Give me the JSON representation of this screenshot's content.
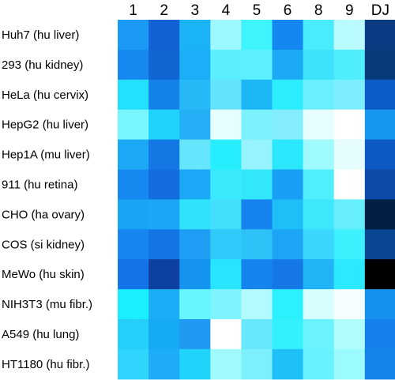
{
  "chart_data": {
    "type": "heatmap",
    "columns": [
      "1",
      "2",
      "3",
      "4",
      "5",
      "6",
      "8",
      "9",
      "DJ"
    ],
    "rows": [
      "Huh7 (hu liver)",
      "293 (hu kidney)",
      "HeLa (hu cervix)",
      "HepG2 (hu liver)",
      "Hep1A (mu liver)",
      "911 (hu retina)",
      "CHO (ha ovary)",
      "COS (si kidney)",
      "MeWo (hu skin)",
      "NIH3T3 (mu fibr.)",
      "A549 (hu lung)",
      "HT1180 (hu fibr.)"
    ],
    "cell_colors": [
      [
        "#1a9af5",
        "#1262d6",
        "#19b3f6",
        "#9cf7fe",
        "#3ef5fe",
        "#1487f0",
        "#48ecfd",
        "#bafcfd",
        "#0b3b83"
      ],
      [
        "#1788f0",
        "#1266d4",
        "#1caef7",
        "#5beffd",
        "#5cf1fd",
        "#1ba9f5",
        "#3ee2fd",
        "#50eefd",
        "#083a7a"
      ],
      [
        "#23e0fc",
        "#1582ea",
        "#27b8f8",
        "#64e3fd",
        "#1cb6f6",
        "#2cedfd",
        "#6af1fd",
        "#7ceefd",
        "#0e5bca"
      ],
      [
        "#78f5fd",
        "#1fd2fc",
        "#23aef6",
        "#e7fefe",
        "#7cf2fe",
        "#84edfd",
        "#e7fefe",
        "#ffffff",
        "#1598ef"
      ],
      [
        "#1ba9f6",
        "#1377e4",
        "#67e5fc",
        "#27eefe",
        "#97f3fe",
        "#2be7fd",
        "#9ffafe",
        "#e6fdfe",
        "#0d5ac4"
      ],
      [
        "#1689f0",
        "#136de0",
        "#1ba8f6",
        "#3be9fd",
        "#33e8fd",
        "#199ef5",
        "#51eefe",
        "#ffffff",
        "#0b4aa6"
      ],
      [
        "#1aa5f4",
        "#1aa7f5",
        "#2fe3fd",
        "#42dffc",
        "#1683ee",
        "#1ebef8",
        "#3de8fd",
        "#66eefc",
        "#041f43"
      ],
      [
        "#1685f0",
        "#1476e4",
        "#1e9ef5",
        "#2fcafa",
        "#2dc2f8",
        "#1ca5f4",
        "#3bd6fc",
        "#3cf1fd",
        "#094691"
      ],
      [
        "#1574ea",
        "#0d40a0",
        "#1594ef",
        "#28e4fd",
        "#1584ee",
        "#1678e7",
        "#20b3f6",
        "#2de9fd",
        "#000000"
      ],
      [
        "#19effe",
        "#1aadf5",
        "#67f6fd",
        "#7ef5fe",
        "#b3fafe",
        "#2bf0fe",
        "#d7fefe",
        "#f4fefe",
        "#1592ee"
      ],
      [
        "#25cffc",
        "#16aaf5",
        "#1f99f2",
        "#ffffff",
        "#69e8fd",
        "#35f0fd",
        "#6bf3fd",
        "#b0fdfe",
        "#1580eb"
      ],
      [
        "#2fd5fc",
        "#1dacf5",
        "#1fd4fb",
        "#9ff9fe",
        "#7cf1fd",
        "#1ec0f8",
        "#68f2fe",
        "#9cfbfe",
        "#1583ea"
      ]
    ]
  }
}
